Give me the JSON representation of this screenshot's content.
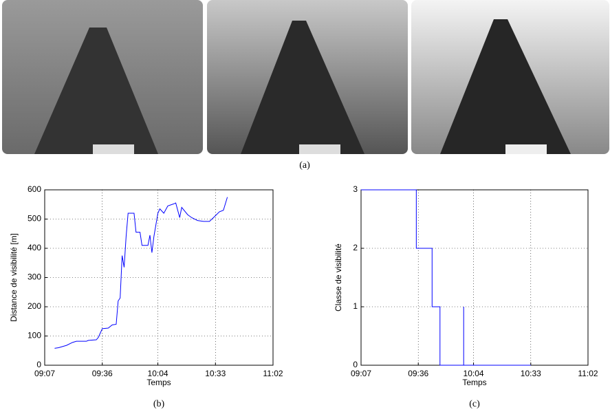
{
  "figure": {
    "caption": "(a)"
  },
  "chart_data": [
    {
      "type": "line",
      "caption": "(b)",
      "x_label": "Temps",
      "y_label": "Distance de visibilité [m]",
      "xlim": [
        "09:07",
        "11:02"
      ],
      "xticks": [
        "09:07",
        "09:36",
        "10:04",
        "10:33",
        "11:02"
      ],
      "ylim": [
        0,
        600
      ],
      "yticks": [
        0,
        100,
        200,
        300,
        400,
        500,
        600
      ],
      "grid": true,
      "series": [
        {
          "color": "#0000ff",
          "x": [
            "09:12",
            "09:14",
            "09:18",
            "09:21",
            "09:23",
            "09:28",
            "09:29",
            "09:33",
            "09:34",
            "09:36",
            "09:39",
            "09:41",
            "09:43",
            "09:44",
            "09:45",
            "09:46",
            "09:47",
            "09:48",
            "09:49",
            "09:52",
            "09:53",
            "09:55",
            "09:56",
            "09:59",
            "10:00",
            "10:01",
            "10:02",
            "10:04",
            "10:05",
            "10:07",
            "10:09",
            "10:12",
            "10:13",
            "10:15",
            "10:16",
            "10:19",
            "10:21",
            "10:24",
            "10:27",
            "10:30",
            "10:32",
            "10:35",
            "10:37",
            "10:39"
          ],
          "values": [
            58,
            60,
            68,
            78,
            82,
            82,
            85,
            87,
            95,
            125,
            127,
            138,
            140,
            220,
            230,
            375,
            335,
            440,
            520,
            520,
            455,
            455,
            410,
            410,
            445,
            385,
            440,
            520,
            535,
            520,
            545,
            552,
            555,
            505,
            540,
            515,
            505,
            495,
            492,
            492,
            505,
            525,
            530,
            575
          ]
        }
      ]
    },
    {
      "type": "line",
      "caption": "(c)",
      "x_label": "Temps",
      "y_label": "Classe de visibilité",
      "xlim": [
        "09:07",
        "11:02"
      ],
      "xticks": [
        "09:07",
        "09:36",
        "10:04",
        "10:33",
        "11:02"
      ],
      "ylim": [
        0,
        3
      ],
      "yticks": [
        0,
        1,
        2,
        3
      ],
      "grid": true,
      "series": [
        {
          "color": "#0000ff",
          "x": [
            "09:07",
            "09:35",
            "09:35",
            "09:43",
            "09:43",
            "09:47",
            "09:47",
            "09:59",
            "09:59",
            "09:59",
            "10:33"
          ],
          "values": [
            3,
            3,
            2,
            2,
            1,
            1,
            0,
            0,
            1,
            0,
            0
          ]
        }
      ]
    }
  ]
}
